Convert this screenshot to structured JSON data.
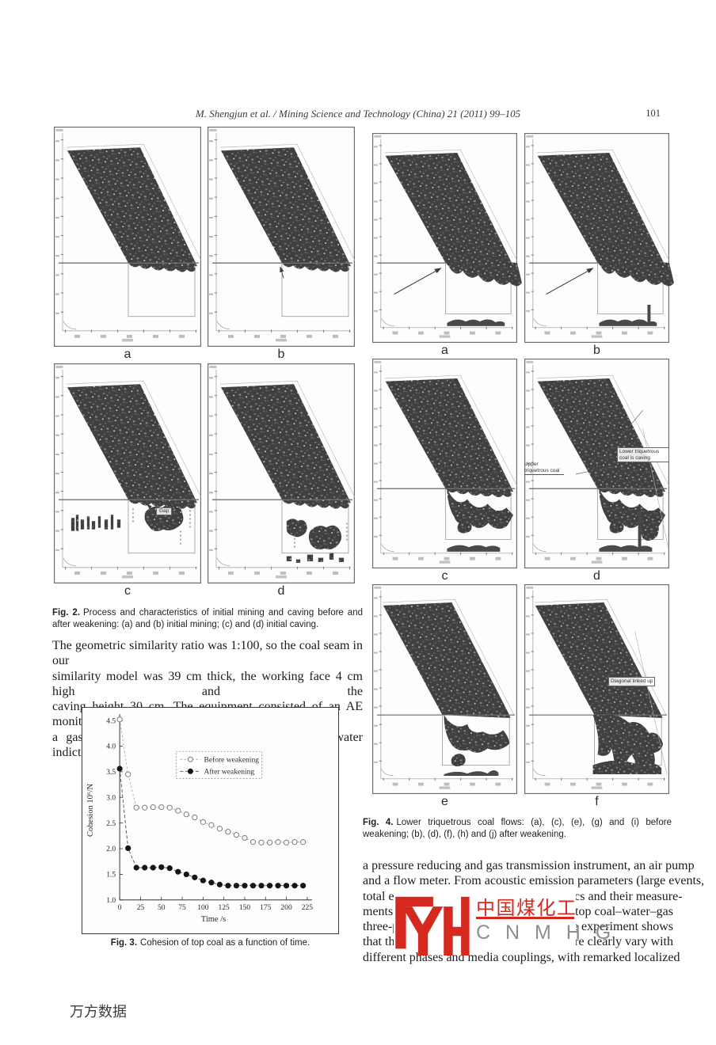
{
  "header": {
    "citation": "M. Shengjun et al. / Mining Science and Technology (China) 21 (2011) 99–105",
    "page_number": "101"
  },
  "figure2": {
    "panel_labels": [
      "a",
      "b",
      "c",
      "d"
    ],
    "annotations": {
      "gap": "Gap"
    },
    "caption_lead": "Fig. 2.",
    "caption": "Process and characteristics of initial mining and caving before and after weakening: (a) and (b) initial mining; (c) and (d) initial caving."
  },
  "left_column": {
    "lines": [
      "The geometric similarity ratio was 1:100, so the coal seam in our",
      "similarity model was 39 cm thick, the working face 4 cm high and the",
      "caving height 30 cm. The equipment consisted of an AE monitor,",
      "a gas chromatograph, an oxygen detector, a red water indictor,"
    ]
  },
  "figure3": {
    "caption_lead": "Fig. 3.",
    "caption": "Cohesion of top coal as a function of time."
  },
  "chart_data": {
    "type": "line",
    "title": "",
    "xlabel": "Time /s",
    "ylabel": "Cohesion 10⁶/N",
    "xlim": [
      0,
      225
    ],
    "ylim": [
      1.0,
      4.5
    ],
    "xticks": [
      0,
      25,
      50,
      75,
      100,
      125,
      150,
      175,
      200,
      225
    ],
    "yticks": [
      1.0,
      1.5,
      2.0,
      2.5,
      3.0,
      3.5,
      4.0,
      4.5
    ],
    "grid": false,
    "legend_position": "upper-middle",
    "x": [
      0,
      10,
      20,
      30,
      40,
      50,
      60,
      70,
      80,
      90,
      100,
      110,
      120,
      130,
      140,
      150,
      160,
      170,
      180,
      190,
      200,
      210,
      220
    ],
    "series": [
      {
        "name": "Before weakening",
        "marker": "open-circle",
        "values": [
          4.52,
          3.45,
          2.8,
          2.8,
          2.81,
          2.81,
          2.8,
          2.74,
          2.67,
          2.61,
          2.52,
          2.46,
          2.39,
          2.33,
          2.27,
          2.21,
          2.13,
          2.12,
          2.12,
          2.13,
          2.12,
          2.13,
          2.13
        ]
      },
      {
        "name": "After weakening",
        "marker": "filled-circle",
        "values": [
          3.56,
          2.01,
          1.63,
          1.63,
          1.63,
          1.64,
          1.62,
          1.55,
          1.5,
          1.44,
          1.38,
          1.34,
          1.3,
          1.28,
          1.28,
          1.28,
          1.28,
          1.28,
          1.28,
          1.28,
          1.28,
          1.28,
          1.28
        ]
      }
    ]
  },
  "figure4": {
    "panel_labels": [
      "a",
      "b",
      "c",
      "d",
      "e",
      "f"
    ],
    "annotations": {
      "upper": "Upper triquetrous coal",
      "lower": "Lower triquetrous coal is caving",
      "diagonal": "Diagonal linked up"
    },
    "caption_lead": "Fig. 4.",
    "caption": "Lower triquetrous coal flows: (a), (c), (e), (g) and (i) before weakening; (b), (d), (f), (h) and (j) after weakening."
  },
  "right_column": {
    "lines": [
      "a pressure reducing and gas transmission instrument, an air pump",
      "and a flow meter. From acoustic emission parameters (large events,",
      "total events and energy rate), characteristics and their measure-",
      "different phases and media couplings, with remarked localized"
    ],
    "frag4a": "ments",
    "frag4b": "of top coal–water–gas",
    "frag5a": "three-p",
    "frag5b": ". The experiment shows",
    "frag6a": "that th",
    "frag6b": "failure clearly vary with"
  },
  "logo": {
    "chinese": "中国煤化工",
    "latin": "C N M H G",
    "color": "#d5281e"
  },
  "watermark": "万方数据",
  "colors": {
    "accent_red": "#d5281e",
    "text": "#1c1c1c",
    "panel_coal": "#404040"
  }
}
